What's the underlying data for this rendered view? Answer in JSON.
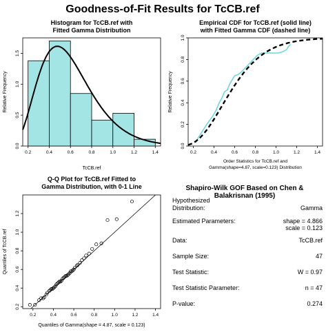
{
  "title": "Goodness-of-Fit Results for TcCB.ref",
  "chart_data": [
    {
      "type": "bar",
      "title": "Histogram for TcCB.ref with Fitted Gamma Distribution",
      "title_lines": [
        "Histogram for TcCB.ref with",
        "Fitted Gamma Distribution"
      ],
      "xlabel": "TcCB.ref",
      "ylabel": "Relative Frequency",
      "xlim": [
        0.15,
        1.45
      ],
      "ylim": [
        0,
        1.75
      ],
      "xticks": [
        "0.2",
        "0.4",
        "0.6",
        "0.8",
        "1.0",
        "1.2",
        "1.4"
      ],
      "yticks": [
        "0.0",
        "0.5",
        "1.0",
        "1.5"
      ],
      "bins": [
        {
          "from": 0.2,
          "to": 0.4,
          "value": 1.38
        },
        {
          "from": 0.4,
          "to": 0.6,
          "value": 1.7
        },
        {
          "from": 0.6,
          "to": 0.8,
          "value": 0.85
        },
        {
          "from": 0.8,
          "to": 1.0,
          "value": 0.42
        },
        {
          "from": 1.0,
          "to": 1.2,
          "value": 0.53
        },
        {
          "from": 1.2,
          "to": 1.4,
          "value": 0.11
        }
      ],
      "fitted_curve": {
        "distribution": "gamma",
        "shape": 4.866,
        "scale": 0.123
      },
      "bar_color": "#a3e4e4"
    },
    {
      "type": "line",
      "title": "Empirical CDF for TcCB.ref (solid line) with Fitted Gamma CDF (dashed line)",
      "title_lines": [
        "Empirical CDF for TcCB.ref (solid line)",
        "with Fitted Gamma CDF (dashed line)"
      ],
      "xlabel_lines": [
        "Order Statistics for TcCB.ref and",
        "Gamma(shape=4.87, scale=0.123) Distribution"
      ],
      "ylabel": "Relative Frequency",
      "xlim": [
        0.15,
        1.45
      ],
      "ylim": [
        0,
        1
      ],
      "xticks": [
        "0.2",
        "0.4",
        "0.6",
        "0.8",
        "1.0",
        "1.2",
        "1.4"
      ],
      "yticks": [
        "0.0",
        "0.2",
        "0.4",
        "0.6",
        "0.8",
        "1.0"
      ],
      "empirical": {
        "x": [
          0.22,
          0.25,
          0.29,
          0.33,
          0.36,
          0.39,
          0.42,
          0.45,
          0.48,
          0.5,
          0.53,
          0.55,
          0.58,
          0.6,
          0.63,
          0.66,
          0.7,
          0.74,
          0.78,
          0.82,
          0.86,
          0.9,
          0.94,
          0.98,
          1.02,
          1.06,
          1.1,
          1.12,
          1.14
        ],
        "y": [
          0.03,
          0.08,
          0.14,
          0.2,
          0.24,
          0.28,
          0.33,
          0.4,
          0.45,
          0.5,
          0.52,
          0.57,
          0.62,
          0.65,
          0.66,
          0.68,
          0.72,
          0.76,
          0.8,
          0.84,
          0.86,
          0.86,
          0.86,
          0.86,
          0.86,
          0.87,
          0.89,
          0.92,
          0.94
        ]
      },
      "fitted": {
        "distribution": "gamma",
        "shape": 4.87,
        "scale": 0.123
      },
      "empirical_color": "#6fd6dc"
    },
    {
      "type": "scatter",
      "title": "Q-Q Plot for TcCB.ref Fitted to Gamma Distribution, with 0-1 Line",
      "title_lines": [
        "Q-Q Plot for TcCB.ref Fitted to",
        "Gamma Distribution, with 0-1 Line"
      ],
      "xlabel": "Quantiles of Gamma(shape = 4.87, scale = 0.123)",
      "ylabel": "Quantiles of TcCB.ref",
      "xlim": [
        0.1,
        1.45
      ],
      "ylim": [
        0.18,
        1.4
      ],
      "xticks": [
        "0.2",
        "0.4",
        "0.6",
        "0.8",
        "1.0",
        "1.2",
        "1.4"
      ],
      "yticks": [
        "0.2",
        "0.4",
        "0.6",
        "0.8",
        "1.0",
        "1.2"
      ],
      "x": [
        0.17,
        0.22,
        0.26,
        0.28,
        0.3,
        0.31,
        0.33,
        0.34,
        0.36,
        0.37,
        0.38,
        0.39,
        0.4,
        0.41,
        0.42,
        0.43,
        0.44,
        0.45,
        0.46,
        0.47,
        0.48,
        0.49,
        0.5,
        0.51,
        0.52,
        0.53,
        0.54,
        0.55,
        0.56,
        0.57,
        0.58,
        0.59,
        0.6,
        0.61,
        0.63,
        0.64,
        0.66,
        0.68,
        0.7,
        0.72,
        0.75,
        0.78,
        0.82,
        0.87,
        0.93,
        1.02,
        1.17
      ],
      "y": [
        0.22,
        0.22,
        0.27,
        0.29,
        0.29,
        0.3,
        0.33,
        0.35,
        0.37,
        0.38,
        0.39,
        0.39,
        0.4,
        0.41,
        0.42,
        0.44,
        0.45,
        0.46,
        0.47,
        0.47,
        0.48,
        0.5,
        0.51,
        0.52,
        0.53,
        0.53,
        0.54,
        0.55,
        0.56,
        0.58,
        0.58,
        0.59,
        0.6,
        0.62,
        0.64,
        0.65,
        0.67,
        0.7,
        0.72,
        0.75,
        0.77,
        0.82,
        0.87,
        0.88,
        1.13,
        1.14,
        1.33
      ],
      "reference_line": "0-1 Line"
    }
  ],
  "gof_panel": {
    "title": "Shapiro-Wilk GOF Based on Chen & Balakrisnan (1995)",
    "rows": [
      {
        "label": "Hypothesized",
        "value": ""
      },
      {
        "label": "Distribution:",
        "value": "Gamma"
      },
      {
        "label": "Estimated Parameters:",
        "value": "shape = 4.866"
      },
      {
        "label": "",
        "value": "scale = 0.123"
      },
      {
        "label": "Data:",
        "value": "TcCB.ref"
      },
      {
        "label": "Sample Size:",
        "value": "47"
      },
      {
        "label": "Test Statistic:",
        "value": "W = 0.97"
      },
      {
        "label": "Test Statistic Parameter:",
        "value": "n = 47"
      },
      {
        "label": "P-value:",
        "value": "0.274"
      }
    ]
  }
}
